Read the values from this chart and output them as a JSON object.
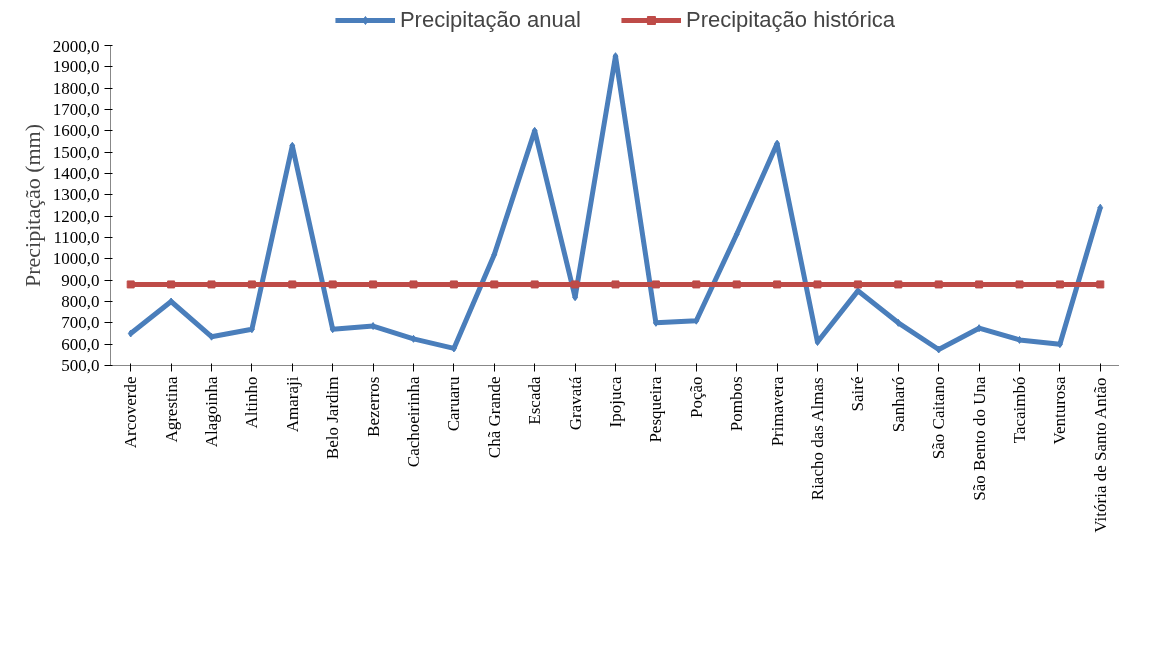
{
  "chart_data": {
    "type": "line",
    "ylabel": "Precipitação (mm)",
    "categories": [
      "Arcoverde",
      "Agrestina",
      "Alagoinha",
      "Altinho",
      "Amaraji",
      "Belo Jardim",
      "Bezerros",
      "Cachoeirinha",
      "Caruaru",
      "Chã Grande",
      "Escada",
      "Gravatá",
      "Ipojuca",
      "Pesqueira",
      "Poção",
      "Pombos",
      "Primavera",
      "Riacho das Almas",
      "Sairé",
      "Sanharó",
      "São Caitano",
      "São Bento do Una",
      "Tacaimbó",
      "Venturosa",
      "Vitória de Santo Antão"
    ],
    "series": [
      {
        "name": "Precipitação anual",
        "color": "#4a7ebb",
        "marker": "diamond",
        "values": [
          650,
          800,
          635,
          670,
          1530,
          670,
          685,
          625,
          580,
          1020,
          1600,
          820,
          1950,
          700,
          710,
          1115,
          1540,
          610,
          850,
          700,
          575,
          675,
          620,
          600,
          1240
        ]
      },
      {
        "name": "Precipitação histórica",
        "color": "#be4b48",
        "marker": "square",
        "values": [
          880,
          880,
          880,
          880,
          880,
          880,
          880,
          880,
          880,
          880,
          880,
          880,
          880,
          880,
          880,
          880,
          880,
          880,
          880,
          880,
          880,
          880,
          880,
          880,
          880
        ]
      }
    ],
    "ylim": [
      500,
      2000
    ],
    "yticks": [
      {
        "value": 500,
        "label": "500,0"
      },
      {
        "value": 600,
        "label": "600,0"
      },
      {
        "value": 700,
        "label": "700,0"
      },
      {
        "value": 800,
        "label": "800,0"
      },
      {
        "value": 900,
        "label": "900,0"
      },
      {
        "value": 1000,
        "label": "1000,0"
      },
      {
        "value": 1100,
        "label": "1100,0"
      },
      {
        "value": 1200,
        "label": "1200,0"
      },
      {
        "value": 1300,
        "label": "1300,0"
      },
      {
        "value": 1400,
        "label": "1400,0"
      },
      {
        "value": 1500,
        "label": "1500,0"
      },
      {
        "value": 1600,
        "label": "1600,0"
      },
      {
        "value": 1700,
        "label": "1700,0"
      },
      {
        "value": 1800,
        "label": "1800,0"
      },
      {
        "value": 1900,
        "label": "1900,0"
      },
      {
        "value": 2000,
        "label": "2000,0"
      }
    ],
    "grid": false,
    "legend": "top",
    "line_style": "solid"
  }
}
